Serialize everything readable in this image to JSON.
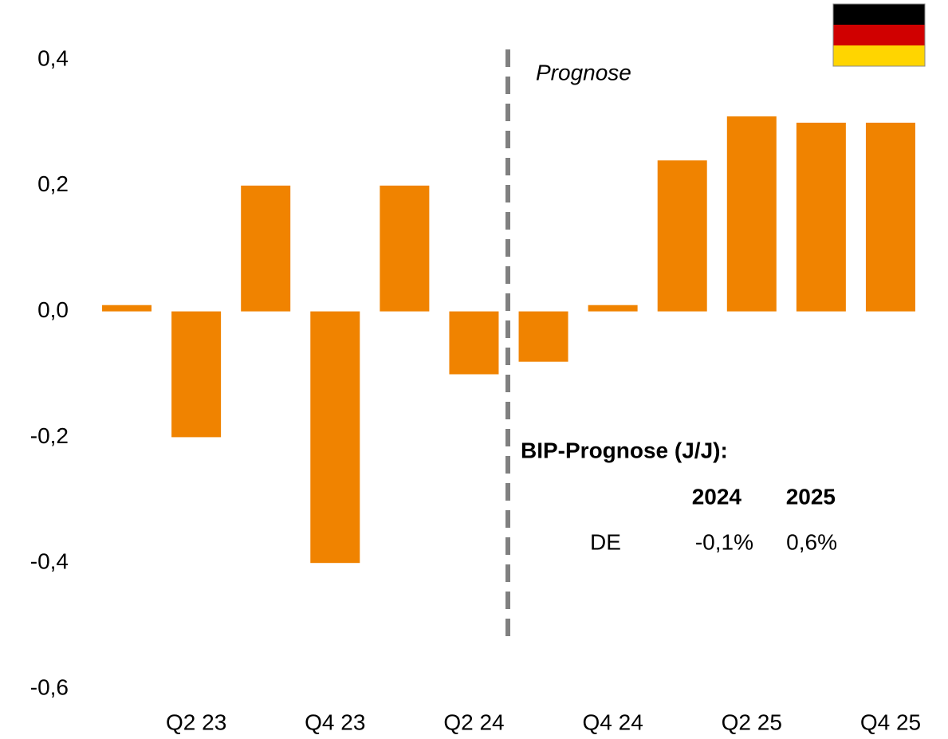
{
  "chart_data": {
    "type": "bar",
    "categories": [
      null,
      "Q2 23",
      null,
      "Q4 23",
      null,
      "Q2 24",
      null,
      "Q4 24",
      null,
      "Q2 25",
      null,
      "Q4 25"
    ],
    "values": [
      0.01,
      -0.2,
      0.2,
      -0.4,
      0.2,
      -0.1,
      -0.08,
      0.01,
      0.24,
      0.31,
      0.3,
      0.3
    ],
    "color": "#f08300",
    "ylim": [
      -0.6,
      0.4
    ],
    "yticks": [
      {
        "value": -0.6,
        "label": "-0,6"
      },
      {
        "value": -0.4,
        "label": "-0,4"
      },
      {
        "value": -0.2,
        "label": "-0,2"
      },
      {
        "value": 0,
        "label": "0,0"
      },
      {
        "value": 0.2,
        "label": "0,2"
      },
      {
        "value": 0.4,
        "label": "0,4"
      }
    ],
    "grid": false,
    "annotation": "Prognose",
    "forecast_table": {
      "title": "BIP-Prognose (J/J):",
      "columns": [
        "2024",
        "2025"
      ],
      "rows": [
        {
          "label": "DE",
          "values": [
            "-0,1%",
            "0,6%"
          ]
        }
      ]
    }
  }
}
